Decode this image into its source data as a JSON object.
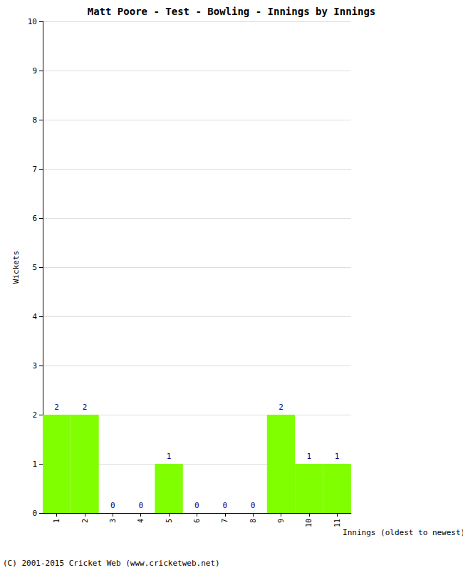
{
  "chart_data": {
    "type": "bar",
    "title": "Matt Poore - Test - Bowling - Innings by Innings",
    "x_label": "Innings (oldest to newest)",
    "y_label": "Wickets",
    "categories": [
      "1",
      "2",
      "3",
      "4",
      "5",
      "6",
      "7",
      "8",
      "9",
      "10",
      "11"
    ],
    "values": [
      2,
      2,
      0,
      0,
      1,
      0,
      0,
      0,
      2,
      1,
      1
    ],
    "color": "#80ff00",
    "ylim": [
      0,
      10
    ],
    "yticks": [
      0,
      1,
      2,
      3,
      4,
      5,
      6,
      7,
      8,
      9,
      10
    ],
    "grid": true,
    "data_labels": true,
    "annotations": [
      "(C) 2001-2015 Cricket Web (www.cricketweb.net)"
    ]
  }
}
